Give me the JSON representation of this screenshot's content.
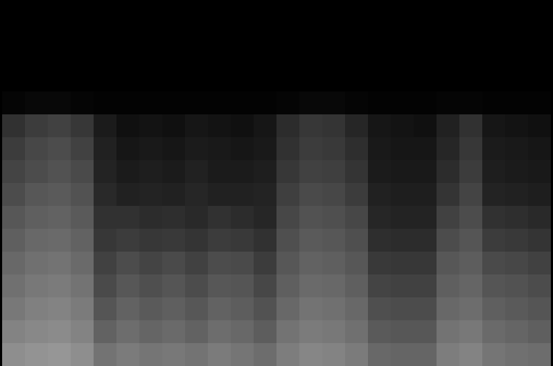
{
  "chart_data": {
    "type": "heatmap",
    "tick_labels": false,
    "grid": false,
    "cells": [
      [
        0,
        0,
        0,
        0,
        0,
        0,
        0,
        0,
        0,
        0,
        0,
        0,
        0,
        0,
        0,
        0,
        0,
        0,
        0,
        0,
        0,
        0,
        0,
        0
      ],
      [
        0,
        0,
        0,
        0,
        0,
        0,
        0,
        0,
        0,
        0,
        0,
        0,
        0,
        0,
        0,
        0,
        0,
        0,
        0,
        0,
        0,
        0,
        0,
        0
      ],
      [
        0,
        0,
        0,
        0,
        0,
        0,
        0,
        0,
        0,
        0,
        0,
        0,
        0,
        0,
        0,
        0,
        0,
        0,
        0,
        0,
        0,
        0,
        0,
        0
      ],
      [
        0,
        0,
        0,
        0,
        0,
        0,
        0,
        0,
        0,
        0,
        0,
        0,
        0,
        0,
        0,
        0,
        0,
        0,
        0,
        0,
        0,
        0,
        0,
        0
      ],
      [
        2,
        3,
        3,
        2,
        1,
        1,
        1,
        1,
        1,
        1,
        1,
        1,
        2,
        3,
        3,
        2,
        1,
        1,
        1,
        2,
        2,
        1,
        1,
        1
      ],
      [
        18,
        22,
        24,
        20,
        10,
        6,
        7,
        6,
        8,
        7,
        6,
        8,
        16,
        20,
        19,
        14,
        8,
        7,
        6,
        12,
        18,
        8,
        7,
        6
      ],
      [
        22,
        26,
        28,
        24,
        12,
        8,
        9,
        8,
        10,
        9,
        8,
        9,
        18,
        22,
        21,
        17,
        9,
        8,
        8,
        14,
        20,
        10,
        9,
        8
      ],
      [
        25,
        28,
        30,
        27,
        13,
        10,
        11,
        10,
        12,
        10,
        10,
        11,
        20,
        24,
        23,
        19,
        10,
        9,
        9,
        16,
        22,
        11,
        10,
        9
      ],
      [
        28,
        32,
        33,
        30,
        15,
        12,
        13,
        12,
        14,
        12,
        12,
        13,
        23,
        27,
        26,
        22,
        12,
        11,
        11,
        19,
        25,
        13,
        12,
        11
      ],
      [
        32,
        35,
        36,
        33,
        18,
        18,
        16,
        17,
        15,
        18,
        16,
        14,
        26,
        30,
        29,
        26,
        14,
        13,
        13,
        24,
        28,
        18,
        17,
        15
      ],
      [
        35,
        38,
        39,
        36,
        20,
        22,
        20,
        21,
        19,
        22,
        21,
        18,
        29,
        33,
        32,
        29,
        17,
        16,
        16,
        28,
        31,
        22,
        21,
        19
      ],
      [
        38,
        41,
        42,
        39,
        24,
        28,
        25,
        27,
        24,
        28,
        27,
        22,
        32,
        36,
        35,
        32,
        21,
        20,
        20,
        32,
        34,
        27,
        26,
        24
      ],
      [
        41,
        44,
        45,
        42,
        27,
        32,
        29,
        31,
        28,
        32,
        31,
        26,
        35,
        39,
        38,
        35,
        25,
        24,
        24,
        35,
        37,
        31,
        30,
        28
      ],
      [
        44,
        47,
        48,
        45,
        31,
        36,
        33,
        35,
        32,
        36,
        34,
        30,
        38,
        42,
        41,
        38,
        29,
        28,
        28,
        38,
        40,
        35,
        33,
        31
      ],
      [
        48,
        50,
        51,
        48,
        36,
        40,
        37,
        39,
        36,
        40,
        38,
        34,
        42,
        45,
        44,
        41,
        33,
        32,
        32,
        42,
        44,
        39,
        37,
        35
      ],
      [
        52,
        54,
        55,
        52,
        42,
        45,
        43,
        44,
        42,
        45,
        43,
        40,
        46,
        49,
        48,
        45,
        38,
        37,
        37,
        46,
        48,
        43,
        41,
        40
      ]
    ]
  }
}
